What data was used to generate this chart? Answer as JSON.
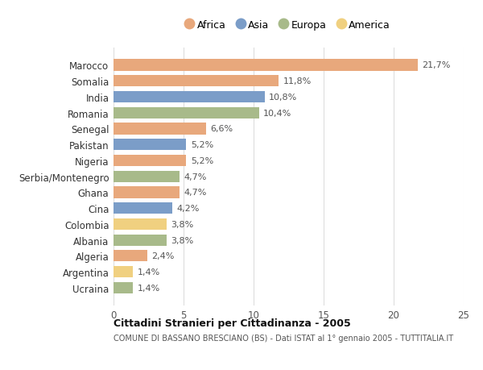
{
  "countries": [
    "Marocco",
    "Somalia",
    "India",
    "Romania",
    "Senegal",
    "Pakistan",
    "Nigeria",
    "Serbia/Montenegro",
    "Ghana",
    "Cina",
    "Colombia",
    "Albania",
    "Algeria",
    "Argentina",
    "Ucraina"
  ],
  "values": [
    21.7,
    11.8,
    10.8,
    10.4,
    6.6,
    5.2,
    5.2,
    4.7,
    4.7,
    4.2,
    3.8,
    3.8,
    2.4,
    1.4,
    1.4
  ],
  "labels": [
    "21,7%",
    "11,8%",
    "10,8%",
    "10,4%",
    "6,6%",
    "5,2%",
    "5,2%",
    "4,7%",
    "4,7%",
    "4,2%",
    "3,8%",
    "3,8%",
    "2,4%",
    "1,4%",
    "1,4%"
  ],
  "continents": [
    "Africa",
    "Africa",
    "Asia",
    "Europa",
    "Africa",
    "Asia",
    "Africa",
    "Europa",
    "Africa",
    "Asia",
    "America",
    "Europa",
    "Africa",
    "America",
    "Europa"
  ],
  "colors": {
    "Africa": "#E8A87C",
    "Asia": "#7B9DC8",
    "Europa": "#A8BA8A",
    "America": "#F0D080"
  },
  "legend_order": [
    "Africa",
    "Asia",
    "Europa",
    "America"
  ],
  "title_bold": "Cittadini Stranieri per Cittadinanza - 2005",
  "subtitle": "COMUNE DI BASSANO BRESCIANO (BS) - Dati ISTAT al 1° gennaio 2005 - TUTTITALIA.IT",
  "xlim": [
    0,
    25
  ],
  "xticks": [
    0,
    5,
    10,
    15,
    20,
    25
  ],
  "background_color": "#ffffff",
  "grid_color": "#dddddd",
  "bar_height": 0.72
}
